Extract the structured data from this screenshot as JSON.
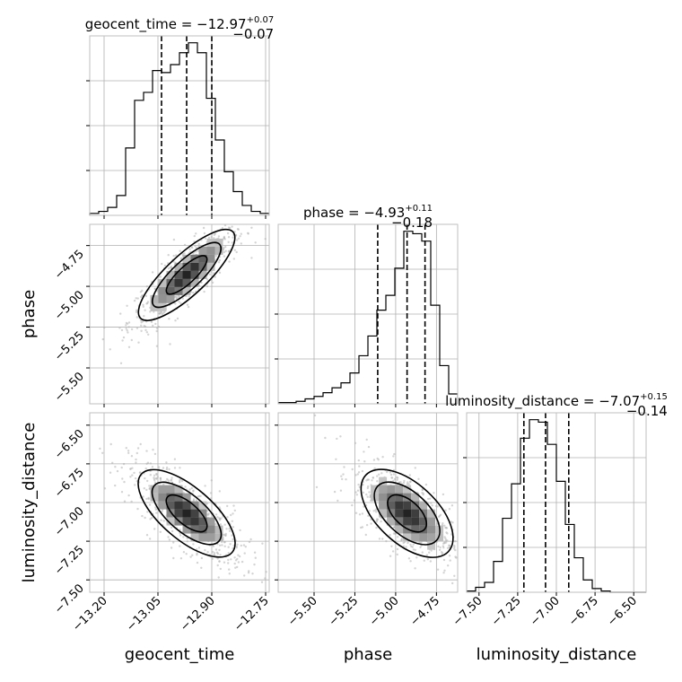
{
  "chart_data": {
    "type": "corner",
    "parameters": [
      "geocent_time",
      "phase",
      "luminosity_distance"
    ],
    "ranges": {
      "geocent_time": [
        -13.24,
        -12.74
      ],
      "phase": [
        -5.72,
        -4.62
      ],
      "luminosity_distance": [
        -7.58,
        -6.42
      ]
    },
    "ticks": {
      "geocent_time": {
        "values": [
          -13.2,
          -13.05,
          -12.9,
          -12.75
        ],
        "labels": [
          "−13.20",
          "−13.05",
          "−12.90",
          "−12.75"
        ]
      },
      "phase": {
        "values": [
          -5.5,
          -5.25,
          -5.0,
          -4.75
        ],
        "labels": [
          "−5.50",
          "−5.25",
          "−5.00",
          "−4.75"
        ]
      },
      "luminosity_distance": {
        "values": [
          -7.5,
          -7.25,
          -7.0,
          -6.75,
          -6.5
        ],
        "labels": [
          "−7.50",
          "−7.25",
          "−7.00",
          "−6.75",
          "−6.50"
        ]
      }
    },
    "titles": [
      {
        "name": "geocent_time",
        "text": "geocent_time = −12.97",
        "sup": "+0.07",
        "sub": "−0.07"
      },
      {
        "name": "phase",
        "text": "phase = −4.93",
        "sup": "+0.11",
        "sub": "−0.18"
      },
      {
        "name": "luminosity_distance",
        "text": "luminosity_distance = −7.07",
        "sup": "+0.15",
        "sub": "−0.14"
      }
    ],
    "histograms": [
      {
        "param": "geocent_time",
        "bins": [
          -13.24,
          -13.215,
          -13.19,
          -13.165,
          -13.14,
          -13.115,
          -13.09,
          -13.065,
          -13.04,
          -13.015,
          -12.99,
          -12.965,
          -12.94,
          -12.915,
          -12.89,
          -12.865,
          -12.84,
          -12.815,
          -12.79,
          -12.765,
          -12.74
        ],
        "counts": [
          1,
          2,
          4,
          10,
          34,
          58,
          62,
          73,
          72,
          76,
          82,
          87,
          82,
          59,
          38,
          22,
          12,
          5,
          2,
          1
        ],
        "quantiles": [
          -13.04,
          -12.97,
          -12.9
        ]
      },
      {
        "param": "phase",
        "bins": [
          -5.72,
          -5.665,
          -5.61,
          -5.555,
          -5.5,
          -5.445,
          -5.39,
          -5.335,
          -5.28,
          -5.225,
          -5.17,
          -5.115,
          -5.06,
          -5.005,
          -4.95,
          -4.895,
          -4.84,
          -4.785,
          -4.73,
          -4.675,
          -4.62
        ],
        "counts": [
          1,
          1,
          2,
          4,
          6,
          9,
          13,
          17,
          25,
          39,
          55,
          76,
          88,
          110,
          140,
          138,
          132,
          80,
          31,
          8
        ],
        "quantiles": [
          -5.11,
          -4.93,
          -4.82
        ]
      },
      {
        "param": "luminosity_distance",
        "bins": [
          -7.58,
          -7.522,
          -7.464,
          -7.406,
          -7.348,
          -7.29,
          -7.232,
          -7.174,
          -7.116,
          -7.058,
          -7.0,
          -6.942,
          -6.884,
          -6.826,
          -6.768,
          -6.71,
          -6.652,
          -6.594,
          -6.536,
          -6.478,
          -6.42
        ],
        "counts": [
          1,
          4,
          8,
          25,
          60,
          88,
          125,
          140,
          138,
          120,
          90,
          55,
          28,
          10,
          3,
          1,
          0,
          0,
          0,
          0
        ],
        "quantiles": [
          -7.21,
          -7.07,
          -6.92
        ]
      }
    ],
    "pairs": [
      {
        "x": "geocent_time",
        "y": "phase",
        "correlation": 0.86
      },
      {
        "x": "geocent_time",
        "y": "luminosity_distance",
        "correlation": -0.75
      },
      {
        "x": "phase",
        "y": "luminosity_distance",
        "correlation": -0.65
      }
    ],
    "grid": true,
    "colors": {
      "line": "#000000",
      "scatter": "#b0b0b0",
      "grid": "#b0b0b0"
    }
  },
  "labels": {
    "geocent_time": "geocent_time",
    "phase": "phase",
    "luminosity_distance": "luminosity_distance"
  }
}
